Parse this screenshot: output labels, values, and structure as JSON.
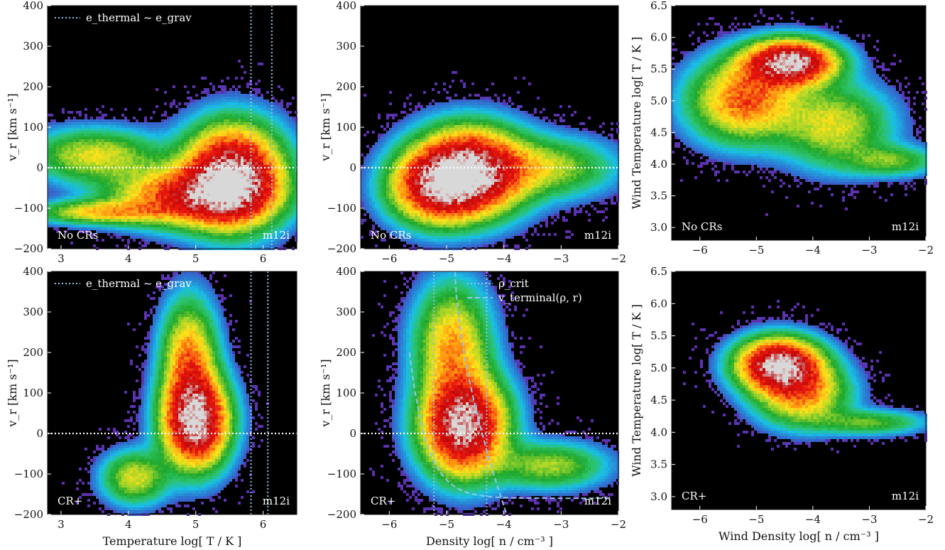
{
  "figure": {
    "colors": {
      "background": "#000000",
      "colormap": [
        "#6a1fa8",
        "#2f6fd0",
        "#19c0e6",
        "#2cc36a",
        "#1fa82c",
        "#9ad22a",
        "#ffe21a",
        "#ff8a12",
        "#e8160e",
        "#c40808",
        "#d8d8d8"
      ],
      "guide_line": "#8fc6ea",
      "zero_line": "#ffffff"
    },
    "legend_thermal": {
      "line_style": "dotted",
      "text": "e_thermal ~ e_grav"
    },
    "legend_crit": {
      "line_style": "dotted",
      "text": "ρ_crit"
    },
    "legend_term": {
      "line_style": "dashed",
      "text": "v_terminal(ρ, r)"
    }
  },
  "chart_data": [
    {
      "type": "heatmap",
      "panel": "row1-col1",
      "xlim": [
        2.8,
        6.5
      ],
      "ylim": [
        -200,
        400
      ],
      "xticks": [
        "3",
        "4",
        "5",
        "6"
      ],
      "xtick_values": [
        3,
        4,
        5,
        6
      ],
      "yticks": [
        "−200",
        "−100",
        "0",
        "100",
        "200",
        "300",
        "400"
      ],
      "ytick_values": [
        -200,
        -100,
        0,
        100,
        200,
        300,
        400
      ],
      "xlabel": "",
      "ylabel": "v_r [km s⁻¹]",
      "label_left": "No CRs",
      "label_right": "m12i",
      "vlines": [
        5.82,
        6.13
      ],
      "hline": 0,
      "legend": "thermal",
      "blobs": [
        {
          "x": 5.55,
          "y": -20,
          "sx": 0.45,
          "sy": 75,
          "w": 1.0
        },
        {
          "x": 4.9,
          "y": -70,
          "sx": 0.7,
          "sy": 45,
          "w": 0.6
        },
        {
          "x": 3.6,
          "y": -110,
          "sx": 0.6,
          "sy": 18,
          "w": 0.35
        },
        {
          "x": 3.5,
          "y": 30,
          "sx": 0.6,
          "sy": 40,
          "w": 0.3
        }
      ]
    },
    {
      "type": "heatmap",
      "panel": "row1-col2",
      "xlim": [
        -6.5,
        -2
      ],
      "ylim": [
        -200,
        400
      ],
      "xticks": [
        "−6",
        "−5",
        "−4",
        "−3",
        "−2"
      ],
      "xtick_values": [
        -6,
        -5,
        -4,
        -3,
        -2
      ],
      "yticks": [
        "−200",
        "−100",
        "0",
        "100",
        "200",
        "300",
        "400"
      ],
      "ytick_values": [
        -200,
        -100,
        0,
        100,
        200,
        300,
        400
      ],
      "xlabel": "",
      "ylabel": "v_r [km s⁻¹]",
      "label_left": "No CRs",
      "label_right": "m12i",
      "vlines": [],
      "hline": 0,
      "legend": "",
      "blobs": [
        {
          "x": -4.6,
          "y": -10,
          "sx": 0.6,
          "sy": 65,
          "w": 1.0
        },
        {
          "x": -5.2,
          "y": -50,
          "sx": 0.5,
          "sy": 55,
          "w": 0.6
        },
        {
          "x": -3.2,
          "y": 0,
          "sx": 0.7,
          "sy": 45,
          "w": 0.25
        }
      ]
    },
    {
      "type": "heatmap",
      "panel": "row1-col3",
      "xlim": [
        -6.5,
        -2
      ],
      "ylim": [
        2.8,
        6.5
      ],
      "xticks": [
        "−6",
        "−5",
        "−4",
        "−3",
        "−2"
      ],
      "xtick_values": [
        -6,
        -5,
        -4,
        -3,
        -2
      ],
      "yticks": [
        "3.0",
        "3.5",
        "4.0",
        "4.5",
        "5.0",
        "5.5",
        "6.0",
        "6.5"
      ],
      "ytick_values": [
        3.0,
        3.5,
        4.0,
        4.5,
        5.0,
        5.5,
        6.0,
        6.5
      ],
      "xlabel": "",
      "ylabel": "Wind Temperature log[ T / K ]",
      "label_left": "No CRs",
      "label_right": "m12i",
      "vlines": [],
      "hline": null,
      "legend": "",
      "blobs": [
        {
          "x": -4.4,
          "y": 5.6,
          "sx": 0.5,
          "sy": 0.22,
          "w": 1.0
        },
        {
          "x": -5.2,
          "y": 5.0,
          "sx": 0.6,
          "sy": 0.4,
          "w": 0.5
        },
        {
          "x": -3.6,
          "y": 4.6,
          "sx": 0.6,
          "sy": 0.4,
          "w": 0.3
        },
        {
          "x": -2.6,
          "y": 4.05,
          "sx": 0.5,
          "sy": 0.15,
          "w": 0.2
        }
      ]
    },
    {
      "type": "heatmap",
      "panel": "row2-col1",
      "xlim": [
        2.8,
        6.5
      ],
      "ylim": [
        -200,
        400
      ],
      "xticks": [
        "3",
        "4",
        "5",
        "6"
      ],
      "xtick_values": [
        3,
        4,
        5,
        6
      ],
      "yticks": [
        "−200",
        "−100",
        "0",
        "100",
        "200",
        "300",
        "400"
      ],
      "ytick_values": [
        -200,
        -100,
        0,
        100,
        200,
        300,
        400
      ],
      "xlabel": "Temperature log[ T / K ]",
      "ylabel": "v_r [km s⁻¹]",
      "label_left": "CR+",
      "label_right": "m12i",
      "vlines": [
        5.82,
        6.07
      ],
      "hline": 0,
      "legend": "thermal",
      "blobs": [
        {
          "x": 5.0,
          "y": 30,
          "sx": 0.3,
          "sy": 70,
          "w": 1.0
        },
        {
          "x": 4.9,
          "y": 180,
          "sx": 0.25,
          "sy": 90,
          "w": 0.45
        },
        {
          "x": 4.1,
          "y": -110,
          "sx": 0.3,
          "sy": 40,
          "w": 0.3
        }
      ]
    },
    {
      "type": "heatmap",
      "panel": "row2-col2",
      "xlim": [
        -6.5,
        -2
      ],
      "ylim": [
        -200,
        400
      ],
      "xticks": [
        "−6",
        "−5",
        "−4",
        "−3",
        "−2"
      ],
      "xtick_values": [
        -6,
        -5,
        -4,
        -3,
        -2
      ],
      "yticks": [
        "−200",
        "−100",
        "0",
        "100",
        "200",
        "300",
        "400"
      ],
      "ytick_values": [
        -200,
        -100,
        0,
        100,
        200,
        300,
        400
      ],
      "xlabel": "Density log[ n / cm⁻³ ]",
      "ylabel": "v_r [km s⁻¹]",
      "label_left": "CR+",
      "label_right": "m12i",
      "vlines": [
        -5.22,
        -4.3
      ],
      "hline": 0,
      "legend": "crit_term",
      "blobs": [
        {
          "x": -4.7,
          "y": 20,
          "sx": 0.45,
          "sy": 75,
          "w": 1.0
        },
        {
          "x": -4.9,
          "y": 220,
          "sx": 0.4,
          "sy": 90,
          "w": 0.4
        },
        {
          "x": -3.2,
          "y": -80,
          "sx": 0.6,
          "sy": 35,
          "w": 0.25
        }
      ]
    },
    {
      "type": "heatmap",
      "panel": "row2-col3",
      "xlim": [
        -6.5,
        -2
      ],
      "ylim": [
        2.8,
        6.5
      ],
      "xticks": [
        "−6",
        "−5",
        "−4",
        "−3",
        "−2"
      ],
      "xtick_values": [
        -6,
        -5,
        -4,
        -3,
        -2
      ],
      "yticks": [
        "3.0",
        "3.5",
        "4.0",
        "4.5",
        "5.0",
        "5.5",
        "6.0",
        "6.5"
      ],
      "ytick_values": [
        3.0,
        3.5,
        4.0,
        4.5,
        5.0,
        5.5,
        6.0,
        6.5
      ],
      "xlabel": "Wind Density log[ n / cm⁻³ ]",
      "ylabel": "Wind Temperature log[ T / K ]",
      "label_left": "CR+",
      "label_right": "m12i",
      "vlines": [],
      "hline": null,
      "legend": "",
      "blobs": [
        {
          "x": -4.6,
          "y": 5.05,
          "sx": 0.45,
          "sy": 0.25,
          "w": 1.0
        },
        {
          "x": -4.2,
          "y": 4.6,
          "sx": 0.5,
          "sy": 0.3,
          "w": 0.45
        },
        {
          "x": -3.0,
          "y": 4.15,
          "sx": 0.6,
          "sy": 0.12,
          "w": 0.2
        }
      ]
    }
  ]
}
